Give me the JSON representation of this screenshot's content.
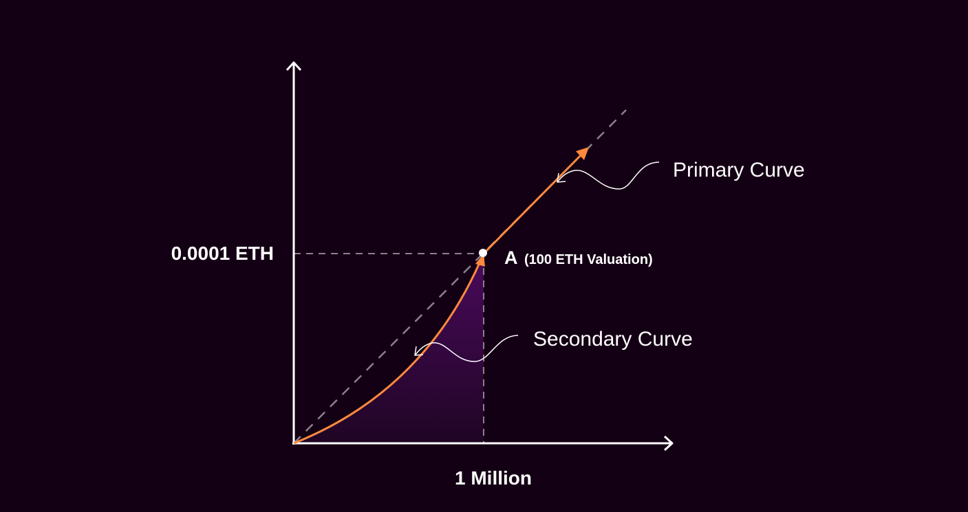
{
  "colors": {
    "background": "#140014",
    "axis": "#ffffff",
    "curve": "#ff8a3d",
    "guide_dashed": "#8c7f90",
    "fill_top": "#4a0a5c",
    "fill_bottom": "#1f0524",
    "text": "#ffffff"
  },
  "labels": {
    "y_value": "0.0001 ETH",
    "x_value": "1 Million",
    "point_name": "A",
    "point_detail": "(100 ETH Valuation)",
    "primary_curve": "Primary Curve",
    "secondary_curve": "Secondary Curve"
  }
}
